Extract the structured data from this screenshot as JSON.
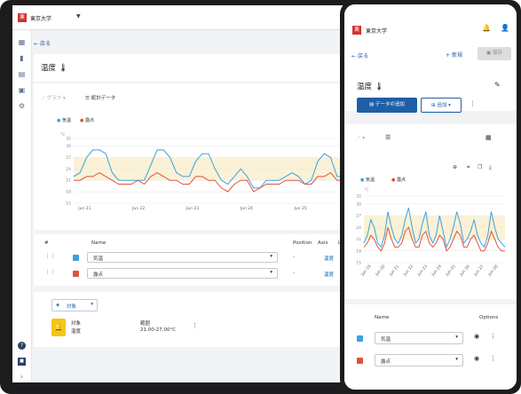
{
  "app": {
    "name": "東京大学",
    "logo": "東"
  },
  "tablet": {
    "back": "戻る",
    "title": "温度",
    "toolbar": {
      "graph": "グラフ",
      "stats": "統計データ"
    },
    "table": {
      "col_index": "#",
      "col_name": "Name",
      "col_position": "Position",
      "col_axis": "Axis",
      "col_lo": "Lo",
      "rows": [
        {
          "name": "気温",
          "position": "-",
          "axis": "温度",
          "color": "#3aa3dc"
        },
        {
          "name": "露点",
          "position": "-",
          "axis": "温度",
          "color": "#e0523c"
        }
      ]
    },
    "target": {
      "button": "対象",
      "label": "対象",
      "value": "温度",
      "range_label": "範囲",
      "range_value": "21.00-27.00°C"
    }
  },
  "phone": {
    "back": "戻る",
    "new": "新規",
    "save": "保存",
    "title": "温度",
    "add_data": "データの追加",
    "add": "追加",
    "table": {
      "col_name": "Name",
      "col_options": "Options",
      "rows": [
        {
          "name": "気温",
          "color": "#3aa3dc"
        },
        {
          "name": "露点",
          "color": "#e0523c"
        }
      ]
    }
  },
  "chart_data": [
    {
      "type": "line",
      "ylabel": "°C",
      "ylim": [
        15,
        32
      ],
      "band": [
        21,
        27
      ],
      "yticks": [
        "32",
        "30",
        "27",
        "24",
        "21",
        "18",
        "15"
      ],
      "xticks": [
        "Jun 21",
        "Jun 22",
        "Jun 23",
        "Jun 24",
        "Jun 25"
      ],
      "series": [
        {
          "name": "気温",
          "color": "#3aa3dc",
          "values": [
            22,
            23,
            27,
            29,
            29,
            28,
            23,
            21,
            21,
            21,
            21,
            21,
            25,
            29,
            29,
            27,
            23,
            22,
            22,
            26,
            28,
            28,
            24,
            21,
            20,
            22,
            24,
            22,
            19,
            19,
            21,
            21,
            21,
            22,
            23,
            22,
            20,
            21,
            26,
            28,
            27,
            22,
            22
          ]
        },
        {
          "name": "露点",
          "color": "#e0523c",
          "values": [
            21,
            21,
            22,
            22,
            23,
            22,
            21,
            20,
            20,
            20,
            21,
            20,
            22,
            23,
            22,
            21,
            21,
            20,
            20,
            22,
            22,
            21,
            21,
            19,
            18,
            20,
            21,
            21,
            18,
            19,
            20,
            20,
            20,
            21,
            21,
            21,
            20,
            20,
            22,
            22,
            23,
            21,
            21
          ]
        }
      ]
    },
    {
      "type": "line",
      "ylabel": "°C",
      "ylim": [
        15,
        32
      ],
      "band": [
        21,
        27
      ],
      "yticks": [
        "32",
        "30",
        "27",
        "24",
        "21",
        "18",
        "15"
      ],
      "xticks": [
        "Jun 19",
        "Jun 20",
        "Jun 21",
        "Jun 22",
        "Jun 23",
        "Jun 24",
        "Jun 25",
        "Jun 26",
        "Jun 27",
        "Jun 28"
      ],
      "series": [
        {
          "name": "気温",
          "color": "#3aa3dc",
          "values": [
            20,
            22,
            26,
            24,
            20,
            19,
            22,
            28,
            24,
            21,
            20,
            22,
            26,
            29,
            24,
            20,
            21,
            25,
            28,
            22,
            20,
            22,
            27,
            23,
            19,
            21,
            24,
            28,
            25,
            20,
            21,
            23,
            26,
            22,
            20,
            19,
            22,
            28,
            24,
            21,
            20,
            19
          ]
        },
        {
          "name": "露点",
          "color": "#e0523c",
          "values": [
            19,
            20,
            22,
            21,
            19,
            18,
            20,
            24,
            21,
            19,
            19,
            20,
            23,
            24,
            21,
            19,
            19,
            22,
            23,
            20,
            19,
            20,
            22,
            21,
            18,
            19,
            21,
            23,
            22,
            19,
            19,
            21,
            22,
            20,
            18,
            18,
            20,
            23,
            21,
            19,
            18,
            18
          ]
        }
      ]
    }
  ]
}
